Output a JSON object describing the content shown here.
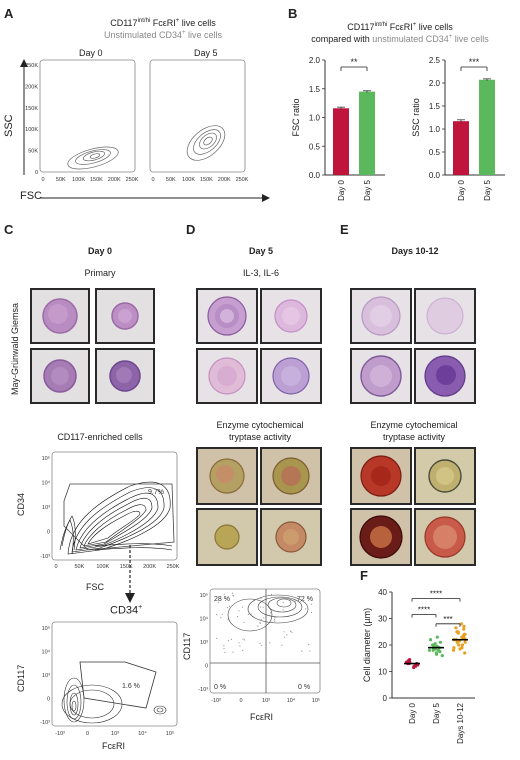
{
  "panelA": {
    "letter": "A",
    "title_line1": "CD117",
    "title_sup1": "int/hi",
    "title_mid": " FcεRI",
    "title_sup2": "+",
    "title_end": " live cells",
    "subtitle": "Unstimulated CD34",
    "subtitle_sup": "+",
    "subtitle_end": " live cells",
    "day0": "Day 0",
    "day5": "Day 5",
    "ylabel": "SSC",
    "xlabel": "FSC",
    "yticks": [
      "250K",
      "200K",
      "150K",
      "100K",
      "50K",
      "0"
    ],
    "xticks": [
      "0",
      "50K",
      "100K",
      "150K",
      "200K",
      "250K"
    ]
  },
  "panelB": {
    "letter": "B",
    "title_line1_a": "CD117",
    "title_line1_sup": "int/hi",
    "title_line1_b": " FcεRI",
    "title_line1_sup2": "+",
    "title_line1_c": " live cells",
    "title_line2_a": "compared with ",
    "title_line2_b": "unstimulated CD34",
    "title_line2_sup": "+",
    "title_line2_c": " live cells"
  },
  "panelC": {
    "letter": "C",
    "heading": "Day 0",
    "subheading": "Primary",
    "stain_label": "May-Grünwald Giemsa",
    "enriched_label": "CD117-enriched cells",
    "gate_pct": "9.7%",
    "ylabel": "CD34",
    "xlabel": "FSC",
    "yticks": [
      "10⁵",
      "10⁴",
      "10³",
      "0",
      "-10³"
    ],
    "xticks": [
      "0",
      "50K",
      "100K",
      "150K",
      "200K",
      "250K"
    ],
    "cd34_label": "CD34",
    "cd34_sup": "+",
    "gate2_pct": "1.6 %",
    "ylabel2": "CD117",
    "xlabel2": "FcεRI",
    "xticks2": [
      "-10³",
      "0",
      "10³",
      "10⁴",
      "10⁵"
    ]
  },
  "panelD": {
    "letter": "D",
    "heading": "Day 5",
    "subheading": "IL-3, IL-6",
    "enzyme_line1": "Enzyme cytochemical",
    "enzyme_line2": "tryptase activity",
    "q_ul": "28 %",
    "q_ur": "72 %",
    "q_ll": "0 %",
    "q_lr": "0 %",
    "ylabel": "CD117",
    "xlabel": "FcεRI",
    "yticks": [
      "10⁵",
      "10⁴",
      "10³",
      "0",
      "-10³"
    ],
    "xticks": [
      "-10³",
      "0",
      "10³",
      "10⁴",
      "10⁵"
    ]
  },
  "panelE": {
    "letter": "E",
    "heading": "Days 10-12",
    "enzyme_line1": "Enzyme cytochemical",
    "enzyme_line2": "tryptase activity"
  },
  "panelF": {
    "letter": "F"
  },
  "chart_data": [
    {
      "type": "bar",
      "categories": [
        "Day 0",
        "Day 5"
      ],
      "values": [
        1.16,
        1.45
      ],
      "errors": [
        0.02,
        0.015
      ],
      "colors": [
        "#c0143c",
        "#5cb85c"
      ],
      "ylabel": "FSC ratio",
      "ylim": [
        0,
        2.0
      ],
      "yticks": [
        0.0,
        0.5,
        1.0,
        1.5,
        2.0
      ],
      "significance": "**"
    },
    {
      "type": "bar",
      "categories": [
        "Day 0",
        "Day 5"
      ],
      "values": [
        1.17,
        2.07
      ],
      "errors": [
        0.03,
        0.02
      ],
      "colors": [
        "#c0143c",
        "#5cb85c"
      ],
      "ylabel": "SSC ratio",
      "ylim": [
        0,
        2.5
      ],
      "yticks": [
        0.0,
        0.5,
        1.0,
        1.5,
        2.0,
        2.5
      ],
      "significance": "***"
    },
    {
      "type": "scatter",
      "categories": [
        "Day 0",
        "Day 5",
        "Days 10-12"
      ],
      "colors": [
        "#c0143c",
        "#5cb85c",
        "#e8a020"
      ],
      "means": [
        13,
        19,
        22
      ],
      "points": [
        [
          12,
          12.5,
          13,
          13.5,
          14,
          12,
          13,
          14.5,
          12.5,
          13.5,
          11.5,
          13
        ],
        [
          16,
          17,
          18,
          18.5,
          19,
          19.5,
          20,
          21,
          22,
          17.5,
          18,
          19,
          20.5,
          16.5,
          23,
          18,
          19,
          20
        ],
        [
          17,
          18,
          19,
          20,
          21,
          22,
          22.5,
          23,
          24,
          25,
          26,
          27,
          28,
          20,
          21,
          22,
          23,
          24,
          19,
          21.5,
          23.5,
          25,
          26.5,
          18.5,
          22,
          24.5
        ]
      ],
      "ylabel": "Cell diameter (µm)",
      "ylim": [
        0,
        40
      ],
      "yticks": [
        0,
        10,
        20,
        30,
        40
      ],
      "comparisons": [
        {
          "from": "Day 0",
          "to": "Days 10-12",
          "label": "****"
        },
        {
          "from": "Day 0",
          "to": "Day 5",
          "label": "****"
        },
        {
          "from": "Day 5",
          "to": "Days 10-12",
          "label": "***"
        }
      ]
    }
  ]
}
